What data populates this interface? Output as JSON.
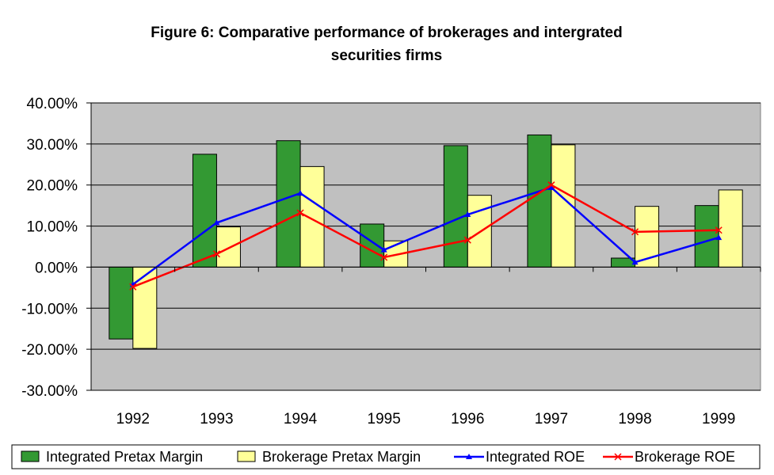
{
  "chart_data": {
    "type": "bar",
    "title_line1": "Figure 6: Comparative performance of brokerages and intergrated",
    "title_line2": "securities firms",
    "xlabel": "",
    "ylabel": "",
    "categories": [
      "1992",
      "1993",
      "1994",
      "1995",
      "1996",
      "1997",
      "1998",
      "1999"
    ],
    "ylim": [
      -0.3,
      0.4
    ],
    "y_ticks": [
      0.4,
      0.3,
      0.2,
      0.1,
      0.0,
      -0.1,
      -0.2,
      -0.3
    ],
    "y_tick_labels": [
      "40.00%",
      "30.00%",
      "20.00%",
      "10.00%",
      "0.00%",
      "-10.00%",
      "-20.00%",
      "-30.00%"
    ],
    "grid": true,
    "legend_position": "bottom",
    "bar_series": [
      {
        "name": "Integrated Pretax Margin",
        "color": "#339933",
        "values": [
          -0.175,
          0.275,
          0.308,
          0.105,
          0.296,
          0.322,
          0.022,
          0.15
        ]
      },
      {
        "name": "Brokerage Pretax Margin",
        "color": "#ffff99",
        "values": [
          -0.198,
          0.098,
          0.245,
          0.064,
          0.175,
          0.298,
          0.148,
          0.188
        ]
      }
    ],
    "line_series": [
      {
        "name": "Integrated ROE",
        "color": "#0000ff",
        "marker": "triangle",
        "values": [
          -0.042,
          0.108,
          0.18,
          0.042,
          0.128,
          0.194,
          0.012,
          0.072
        ]
      },
      {
        "name": "Brokerage ROE",
        "color": "#ff0000",
        "marker": "x",
        "values": [
          -0.048,
          0.032,
          0.132,
          0.024,
          0.066,
          0.2,
          0.086,
          0.09
        ]
      }
    ],
    "plot_background": "#c0c0c0"
  }
}
